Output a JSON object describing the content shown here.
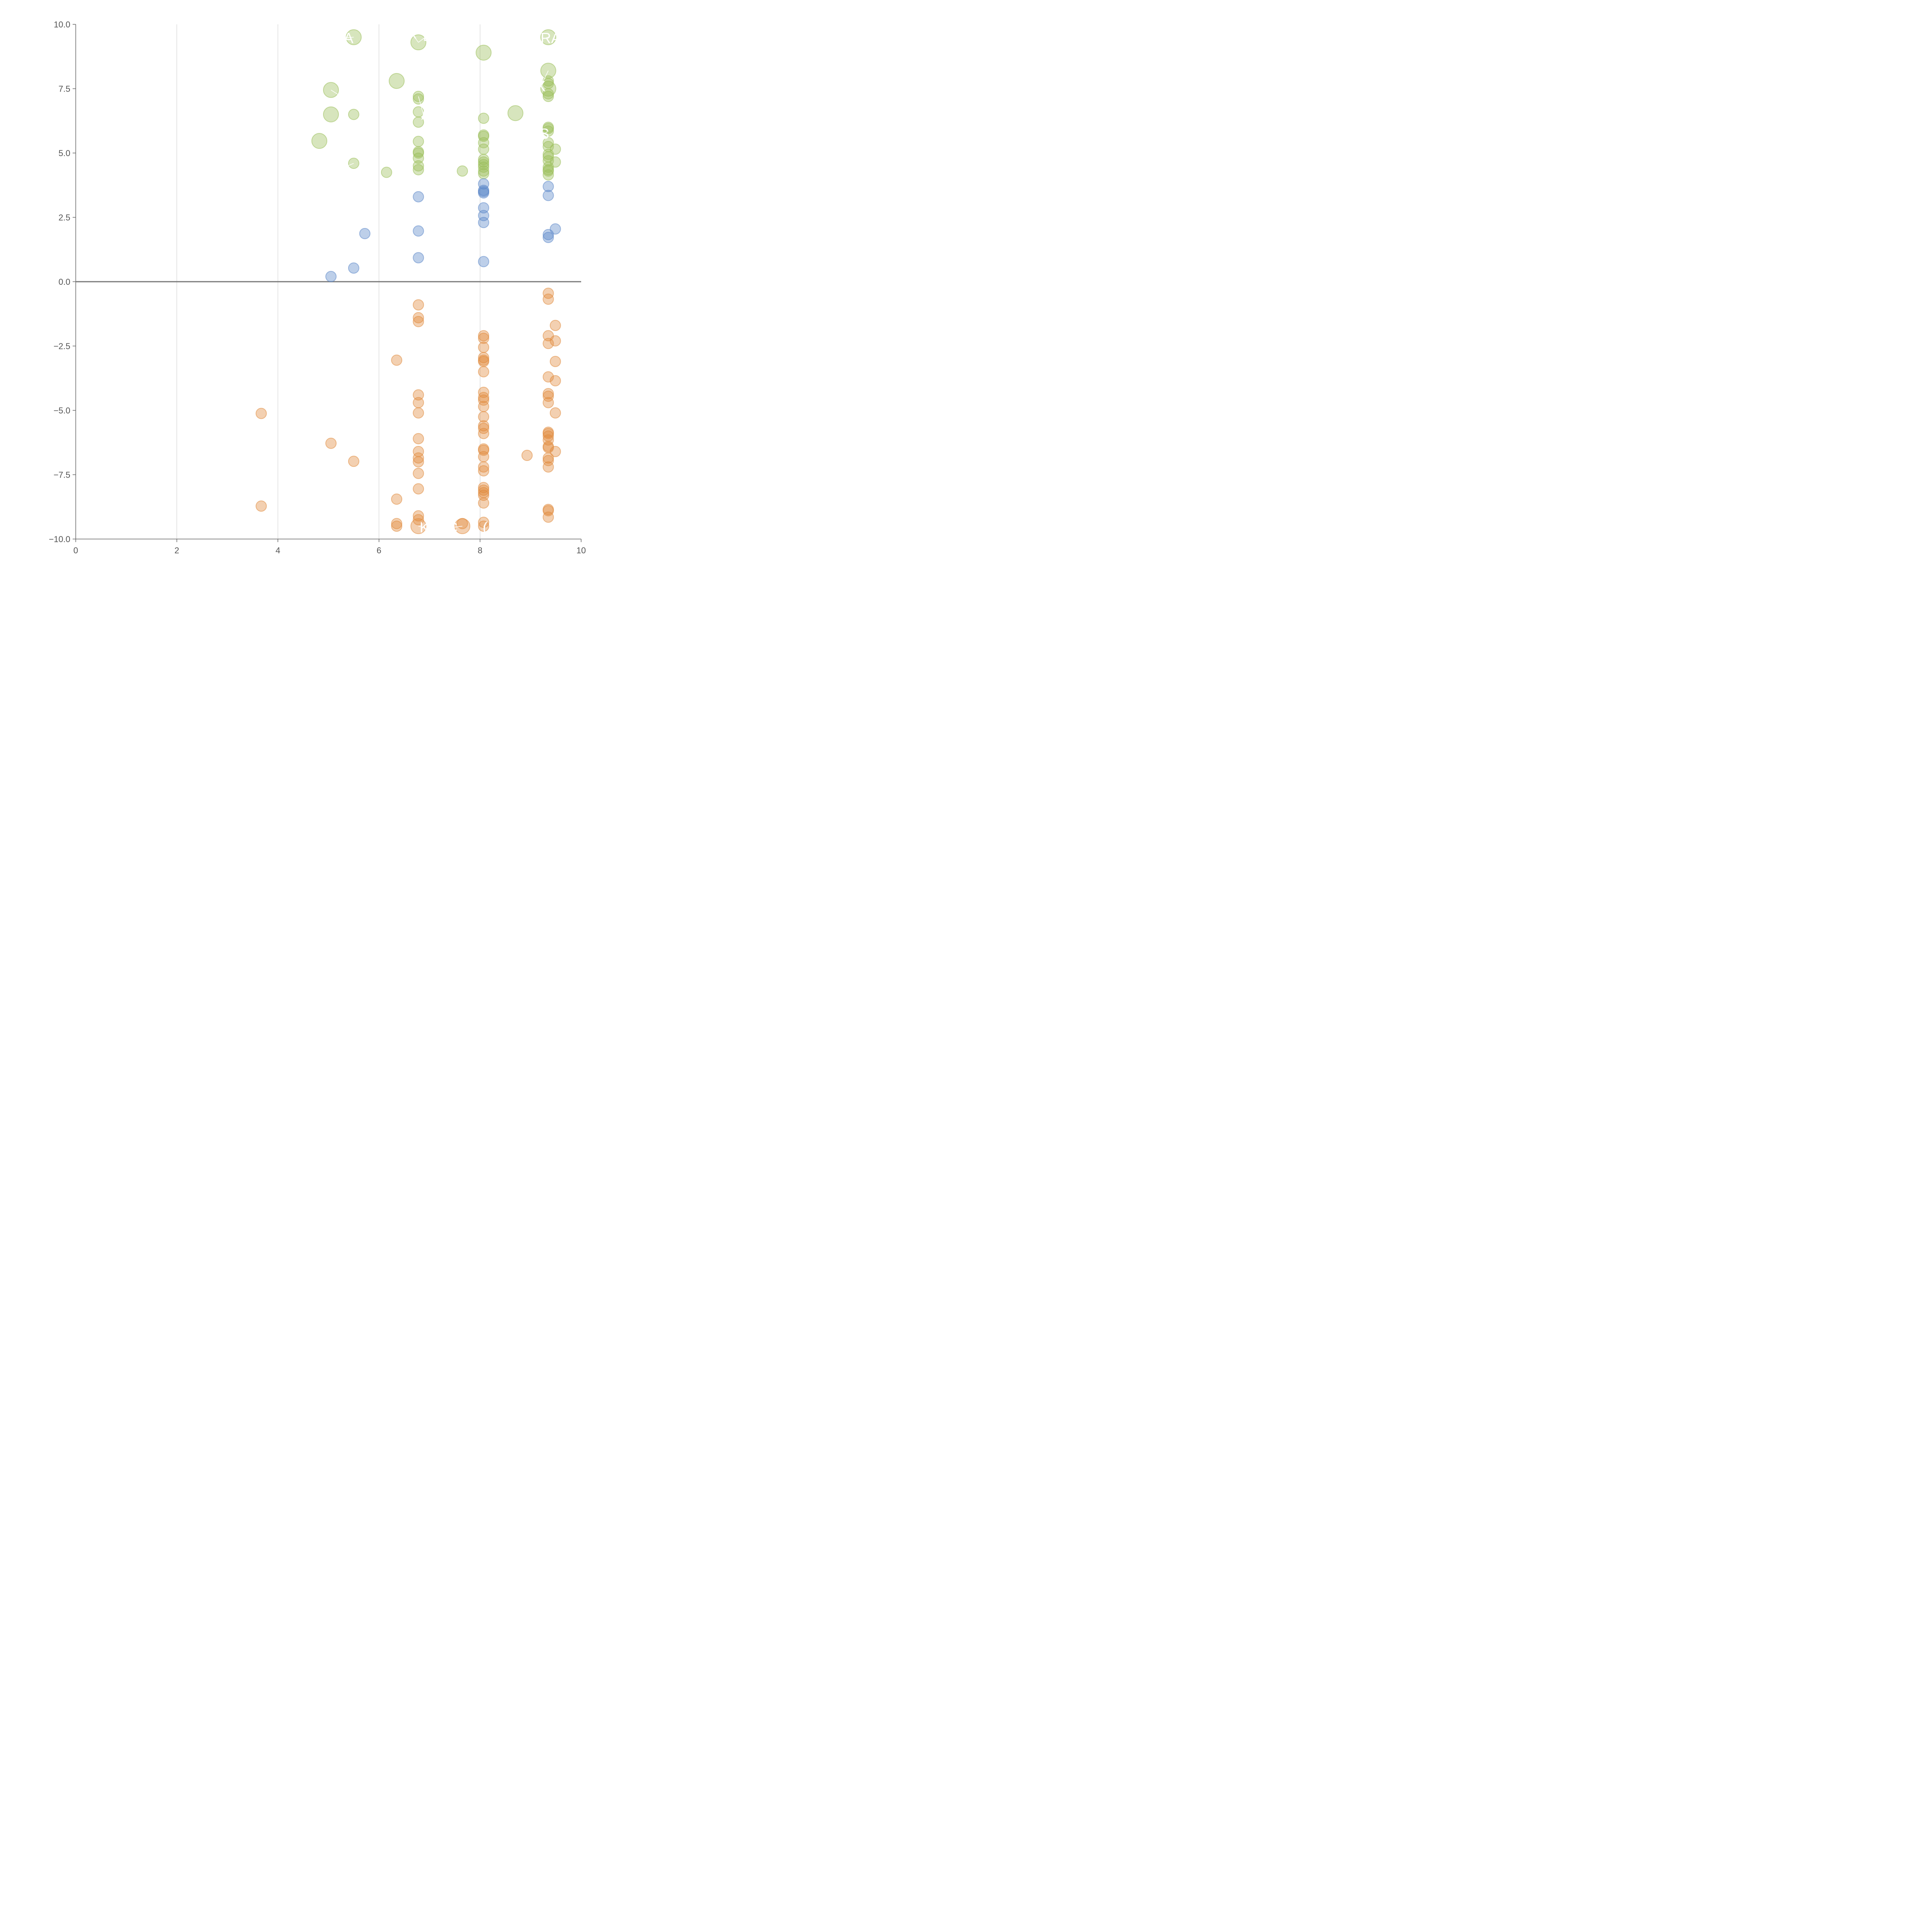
{
  "chart_data": {
    "type": "scatter",
    "title": "",
    "xlabel": "",
    "ylabel": "",
    "xlim": [
      0,
      10
    ],
    "ylim": [
      -10,
      10
    ],
    "x_ticks": [
      0,
      2,
      4,
      6,
      8,
      10
    ],
    "y_ticks": [
      10.0,
      7.5,
      5.0,
      2.5,
      0.0,
      -2.5,
      -5.0,
      -7.5,
      -10.0
    ],
    "y_tick_labels": [
      "10.0",
      "7.5",
      "5.0",
      "2.5",
      "0.0",
      "−2.5",
      "−5.0",
      "−7.5",
      "−10.0"
    ],
    "x_tick_labels": [
      "0",
      "2",
      "4",
      "6",
      "8",
      "10"
    ],
    "grid": "vertical",
    "zero_line": true,
    "colors": {
      "green": "#9bbf5a",
      "blue": "#5b87c9",
      "orange": "#e08a3c"
    },
    "series": [
      {
        "color": "green",
        "points": [
          {
            "x": 5.5,
            "y": 9.5,
            "s": 4.2
          },
          {
            "x": 6.78,
            "y": 9.3,
            "s": 4.2
          },
          {
            "x": 8.07,
            "y": 8.9,
            "s": 4.2
          },
          {
            "x": 9.35,
            "y": 9.5,
            "s": 4.2
          },
          {
            "x": 9.35,
            "y": 8.2,
            "s": 4.2
          },
          {
            "x": 9.35,
            "y": 7.5,
            "s": 4.2
          },
          {
            "x": 5.05,
            "y": 7.45,
            "s": 4.2
          },
          {
            "x": 6.35,
            "y": 7.8,
            "s": 4.2
          },
          {
            "x": 5.05,
            "y": 6.5,
            "s": 4.2
          },
          {
            "x": 8.7,
            "y": 6.55,
            "s": 4.2
          },
          {
            "x": 4.82,
            "y": 5.47,
            "s": 4.2
          },
          {
            "x": 5.5,
            "y": 6.5,
            "s": 2
          },
          {
            "x": 5.5,
            "y": 4.6,
            "s": 2
          },
          {
            "x": 6.15,
            "y": 4.25,
            "s": 2
          },
          {
            "x": 7.65,
            "y": 4.3,
            "s": 2
          },
          {
            "x": 6.78,
            "y": 7.2,
            "s": 2
          },
          {
            "x": 6.78,
            "y": 7.1,
            "s": 2
          },
          {
            "x": 6.78,
            "y": 6.6,
            "s": 2
          },
          {
            "x": 6.78,
            "y": 6.2,
            "s": 2
          },
          {
            "x": 6.78,
            "y": 5.45,
            "s": 2
          },
          {
            "x": 6.78,
            "y": 5.05,
            "s": 2
          },
          {
            "x": 6.78,
            "y": 5.0,
            "s": 2
          },
          {
            "x": 6.78,
            "y": 4.8,
            "s": 2
          },
          {
            "x": 6.78,
            "y": 4.5,
            "s": 2
          },
          {
            "x": 6.78,
            "y": 4.35,
            "s": 2
          },
          {
            "x": 8.07,
            "y": 6.35,
            "s": 2
          },
          {
            "x": 8.07,
            "y": 5.7,
            "s": 2
          },
          {
            "x": 8.07,
            "y": 5.65,
            "s": 2
          },
          {
            "x": 8.07,
            "y": 5.4,
            "s": 2
          },
          {
            "x": 8.07,
            "y": 5.15,
            "s": 2
          },
          {
            "x": 8.07,
            "y": 4.75,
            "s": 2
          },
          {
            "x": 8.07,
            "y": 4.65,
            "s": 2
          },
          {
            "x": 8.07,
            "y": 4.55,
            "s": 2
          },
          {
            "x": 8.07,
            "y": 4.45,
            "s": 2
          },
          {
            "x": 8.07,
            "y": 4.3,
            "s": 2
          },
          {
            "x": 8.07,
            "y": 4.2,
            "s": 2
          },
          {
            "x": 9.35,
            "y": 7.8,
            "s": 2
          },
          {
            "x": 9.35,
            "y": 7.7,
            "s": 2
          },
          {
            "x": 9.35,
            "y": 7.3,
            "s": 2
          },
          {
            "x": 9.35,
            "y": 7.2,
            "s": 2
          },
          {
            "x": 9.35,
            "y": 6.0,
            "s": 2
          },
          {
            "x": 9.35,
            "y": 5.95,
            "s": 2
          },
          {
            "x": 9.35,
            "y": 5.85,
            "s": 2
          },
          {
            "x": 9.35,
            "y": 5.4,
            "s": 2
          },
          {
            "x": 9.35,
            "y": 5.25,
            "s": 2
          },
          {
            "x": 9.35,
            "y": 4.95,
            "s": 2
          },
          {
            "x": 9.35,
            "y": 4.85,
            "s": 2
          },
          {
            "x": 9.35,
            "y": 4.7,
            "s": 2
          },
          {
            "x": 9.35,
            "y": 4.45,
            "s": 2
          },
          {
            "x": 9.35,
            "y": 4.35,
            "s": 2
          },
          {
            "x": 9.35,
            "y": 4.3,
            "s": 2
          },
          {
            "x": 9.35,
            "y": 4.15,
            "s": 2
          },
          {
            "x": 9.49,
            "y": 5.15,
            "s": 2
          },
          {
            "x": 9.49,
            "y": 4.65,
            "s": 2
          }
        ]
      },
      {
        "color": "blue",
        "points": [
          {
            "x": 5.05,
            "y": 0.2,
            "s": 2
          },
          {
            "x": 5.5,
            "y": 0.53,
            "s": 2
          },
          {
            "x": 5.72,
            "y": 1.87,
            "s": 2
          },
          {
            "x": 6.78,
            "y": 3.3,
            "s": 2
          },
          {
            "x": 6.78,
            "y": 1.97,
            "s": 2
          },
          {
            "x": 6.78,
            "y": 0.93,
            "s": 2
          },
          {
            "x": 8.07,
            "y": 3.8,
            "s": 2
          },
          {
            "x": 8.07,
            "y": 3.55,
            "s": 2
          },
          {
            "x": 8.07,
            "y": 3.5,
            "s": 2
          },
          {
            "x": 8.07,
            "y": 3.45,
            "s": 2
          },
          {
            "x": 8.07,
            "y": 2.87,
            "s": 2
          },
          {
            "x": 8.07,
            "y": 2.57,
            "s": 2
          },
          {
            "x": 8.07,
            "y": 2.3,
            "s": 2
          },
          {
            "x": 8.07,
            "y": 0.78,
            "s": 2
          },
          {
            "x": 9.35,
            "y": 3.7,
            "s": 2
          },
          {
            "x": 9.35,
            "y": 3.35,
            "s": 2
          },
          {
            "x": 9.35,
            "y": 1.83,
            "s": 2
          },
          {
            "x": 9.35,
            "y": 1.72,
            "s": 2
          },
          {
            "x": 9.49,
            "y": 2.05,
            "s": 2
          }
        ]
      },
      {
        "color": "orange",
        "points": [
          {
            "x": 3.67,
            "y": -5.12,
            "s": 2
          },
          {
            "x": 3.67,
            "y": -8.72,
            "s": 2
          },
          {
            "x": 5.05,
            "y": -6.28,
            "s": 2
          },
          {
            "x": 5.5,
            "y": -6.98,
            "s": 2
          },
          {
            "x": 6.35,
            "y": -3.05,
            "s": 2
          },
          {
            "x": 6.35,
            "y": -8.45,
            "s": 2
          },
          {
            "x": 6.35,
            "y": -9.4,
            "s": 2
          },
          {
            "x": 6.35,
            "y": -9.5,
            "s": 2
          },
          {
            "x": 6.78,
            "y": -0.9,
            "s": 2
          },
          {
            "x": 6.78,
            "y": -1.4,
            "s": 2
          },
          {
            "x": 6.78,
            "y": -1.55,
            "s": 2
          },
          {
            "x": 6.78,
            "y": -4.4,
            "s": 2
          },
          {
            "x": 6.78,
            "y": -4.7,
            "s": 2
          },
          {
            "x": 6.78,
            "y": -5.1,
            "s": 2
          },
          {
            "x": 6.78,
            "y": -6.1,
            "s": 2
          },
          {
            "x": 6.78,
            "y": -6.6,
            "s": 2
          },
          {
            "x": 6.78,
            "y": -6.85,
            "s": 2
          },
          {
            "x": 6.78,
            "y": -7.0,
            "s": 2
          },
          {
            "x": 6.78,
            "y": -7.45,
            "s": 2
          },
          {
            "x": 6.78,
            "y": -8.05,
            "s": 2
          },
          {
            "x": 6.78,
            "y": -9.1,
            "s": 2
          },
          {
            "x": 6.78,
            "y": -9.25,
            "s": 2
          },
          {
            "x": 6.78,
            "y": -9.5,
            "s": 4.2
          },
          {
            "x": 7.65,
            "y": -9.5,
            "s": 4.2
          },
          {
            "x": 7.65,
            "y": -9.4,
            "s": 2
          },
          {
            "x": 8.07,
            "y": -2.1,
            "s": 2
          },
          {
            "x": 8.07,
            "y": -2.2,
            "s": 2
          },
          {
            "x": 8.07,
            "y": -2.55,
            "s": 2
          },
          {
            "x": 8.07,
            "y": -2.95,
            "s": 2
          },
          {
            "x": 8.07,
            "y": -3.05,
            "s": 2
          },
          {
            "x": 8.07,
            "y": -3.1,
            "s": 2
          },
          {
            "x": 8.07,
            "y": -3.5,
            "s": 2
          },
          {
            "x": 8.07,
            "y": -4.3,
            "s": 2
          },
          {
            "x": 8.07,
            "y": -4.5,
            "s": 2
          },
          {
            "x": 8.07,
            "y": -4.6,
            "s": 2
          },
          {
            "x": 8.07,
            "y": -4.85,
            "s": 2
          },
          {
            "x": 8.07,
            "y": -5.25,
            "s": 2
          },
          {
            "x": 8.07,
            "y": -5.6,
            "s": 2
          },
          {
            "x": 8.07,
            "y": -5.7,
            "s": 2
          },
          {
            "x": 8.07,
            "y": -5.9,
            "s": 2
          },
          {
            "x": 8.07,
            "y": -6.5,
            "s": 2
          },
          {
            "x": 8.07,
            "y": -6.55,
            "s": 2
          },
          {
            "x": 8.07,
            "y": -6.8,
            "s": 2
          },
          {
            "x": 8.07,
            "y": -7.2,
            "s": 2
          },
          {
            "x": 8.07,
            "y": -7.35,
            "s": 2
          },
          {
            "x": 8.07,
            "y": -8.0,
            "s": 2
          },
          {
            "x": 8.07,
            "y": -8.1,
            "s": 2
          },
          {
            "x": 8.07,
            "y": -8.2,
            "s": 2
          },
          {
            "x": 8.07,
            "y": -8.3,
            "s": 2
          },
          {
            "x": 8.07,
            "y": -8.6,
            "s": 2
          },
          {
            "x": 8.07,
            "y": -9.35,
            "s": 2
          },
          {
            "x": 8.07,
            "y": -9.5,
            "s": 2
          },
          {
            "x": 8.93,
            "y": -6.75,
            "s": 2
          },
          {
            "x": 9.35,
            "y": -0.45,
            "s": 2
          },
          {
            "x": 9.35,
            "y": -0.68,
            "s": 2
          },
          {
            "x": 9.35,
            "y": -2.1,
            "s": 2
          },
          {
            "x": 9.35,
            "y": -2.4,
            "s": 2
          },
          {
            "x": 9.35,
            "y": -3.7,
            "s": 2
          },
          {
            "x": 9.35,
            "y": -4.35,
            "s": 2
          },
          {
            "x": 9.35,
            "y": -4.45,
            "s": 2
          },
          {
            "x": 9.35,
            "y": -4.7,
            "s": 2
          },
          {
            "x": 9.35,
            "y": -5.85,
            "s": 2
          },
          {
            "x": 9.35,
            "y": -5.9,
            "s": 2
          },
          {
            "x": 9.35,
            "y": -6.0,
            "s": 2
          },
          {
            "x": 9.35,
            "y": -6.15,
            "s": 2
          },
          {
            "x": 9.35,
            "y": -6.4,
            "s": 2
          },
          {
            "x": 9.35,
            "y": -6.45,
            "s": 2
          },
          {
            "x": 9.35,
            "y": -6.85,
            "s": 2
          },
          {
            "x": 9.35,
            "y": -6.95,
            "s": 2
          },
          {
            "x": 9.35,
            "y": -7.2,
            "s": 2
          },
          {
            "x": 9.35,
            "y": -8.85,
            "s": 2
          },
          {
            "x": 9.35,
            "y": -8.9,
            "s": 2
          },
          {
            "x": 9.35,
            "y": -9.15,
            "s": 2
          },
          {
            "x": 9.49,
            "y": -1.7,
            "s": 2
          },
          {
            "x": 9.49,
            "y": -2.3,
            "s": 2
          },
          {
            "x": 9.49,
            "y": -3.1,
            "s": 2
          },
          {
            "x": 9.49,
            "y": -3.85,
            "s": 2
          },
          {
            "x": 9.49,
            "y": -5.1,
            "s": 2
          },
          {
            "x": 9.49,
            "y": -6.6,
            "s": 2
          }
        ]
      }
    ],
    "annotations": [
      {
        "text": "BA",
        "x": 5.5,
        "y": 9.5,
        "tx": 5.3,
        "ty": 9.47
      },
      {
        "text": "X",
        "x": 6.78,
        "y": 9.3,
        "tx": 6.65,
        "ty": 9.65
      },
      {
        "text": "L",
        "x": 6.78,
        "y": 9.3,
        "tx": 6.95,
        "ty": 9.55
      },
      {
        "text": "XRA",
        "x": 9.35,
        "y": 9.5,
        "tx": 9.3,
        "ty": 9.47
      },
      {
        "text": "X",
        "x": 9.35,
        "y": 8.2,
        "tx": 9.2,
        "ty": 7.6
      },
      {
        "text": "J",
        "x": 5.05,
        "y": 7.45,
        "tx": 5.25,
        "ty": 7.2
      },
      {
        "text": "/",
        "x": 6.78,
        "y": 7.2,
        "tx": 6.88,
        "ty": 6.5
      },
      {
        "text": "S",
        "x": 9.35,
        "y": 5.85,
        "tx": 9.27,
        "ty": 5.75
      },
      {
        "text": ",",
        "x": 5.5,
        "y": 4.6,
        "tx": 5.38,
        "ty": 4.5
      },
      {
        "text": "K",
        "x": 6.78,
        "y": -9.5,
        "tx": 6.9,
        "ty": -9.55
      },
      {
        "text": "C",
        "x": 7.65,
        "y": -9.5,
        "tx": 7.45,
        "ty": -9.55
      },
      {
        "text": "(",
        "x": 8.07,
        "y": -9.5,
        "tx": 8.1,
        "ty": -9.55
      }
    ]
  }
}
